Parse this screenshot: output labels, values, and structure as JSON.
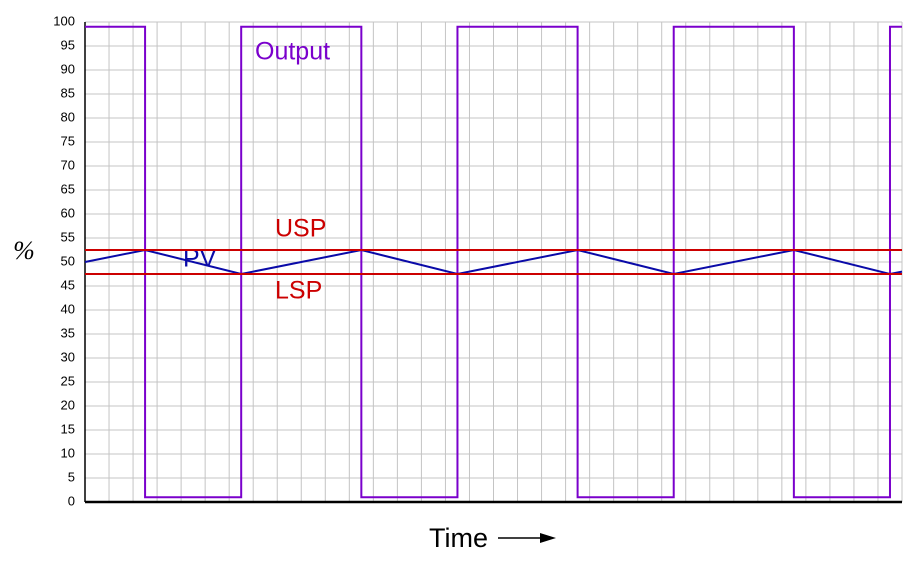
{
  "chart_data": {
    "type": "line",
    "xlabel": "Time",
    "ylabel": "%",
    "xlim": [
      0,
      34
    ],
    "ylim": [
      0,
      100
    ],
    "yticks": [
      0,
      5,
      10,
      15,
      20,
      25,
      30,
      35,
      40,
      45,
      50,
      55,
      60,
      65,
      70,
      75,
      80,
      85,
      90,
      95,
      100
    ],
    "xticks": [
      0,
      1,
      2,
      3,
      4,
      5,
      6,
      7,
      8,
      9,
      10,
      11,
      12,
      13,
      14,
      15,
      16,
      17,
      18,
      19,
      20,
      21,
      22,
      23,
      24,
      25,
      26,
      27,
      28,
      29,
      30,
      31,
      32,
      33,
      34
    ],
    "xtick_labels": false,
    "grid": true,
    "series": [
      {
        "name": "Output",
        "color": "#7a00cc",
        "x": [
          0,
          2.5,
          2.5,
          6.5,
          6.5,
          11.5,
          11.5,
          15.5,
          15.5,
          20.5,
          20.5,
          24.5,
          24.5,
          29.5,
          29.5,
          33.5,
          33.5,
          34
        ],
        "values": [
          99,
          99,
          1,
          1,
          99,
          99,
          1,
          1,
          99,
          99,
          1,
          1,
          99,
          99,
          1,
          1,
          99,
          99
        ]
      },
      {
        "name": "PV",
        "color": "#0a0aa8",
        "x": [
          0,
          2.5,
          6.5,
          11.5,
          15.5,
          20.5,
          24.5,
          29.5,
          33.5,
          34
        ],
        "values": [
          50,
          52.5,
          47.5,
          52.5,
          47.5,
          52.5,
          47.5,
          52.5,
          47.5,
          48
        ]
      },
      {
        "name": "USP",
        "color": "#cc0000",
        "x": [
          0,
          34
        ],
        "values": [
          52.5,
          52.5
        ]
      },
      {
        "name": "LSP",
        "color": "#cc0000",
        "x": [
          0,
          34
        ],
        "values": [
          47.5,
          47.5
        ]
      }
    ]
  }
}
